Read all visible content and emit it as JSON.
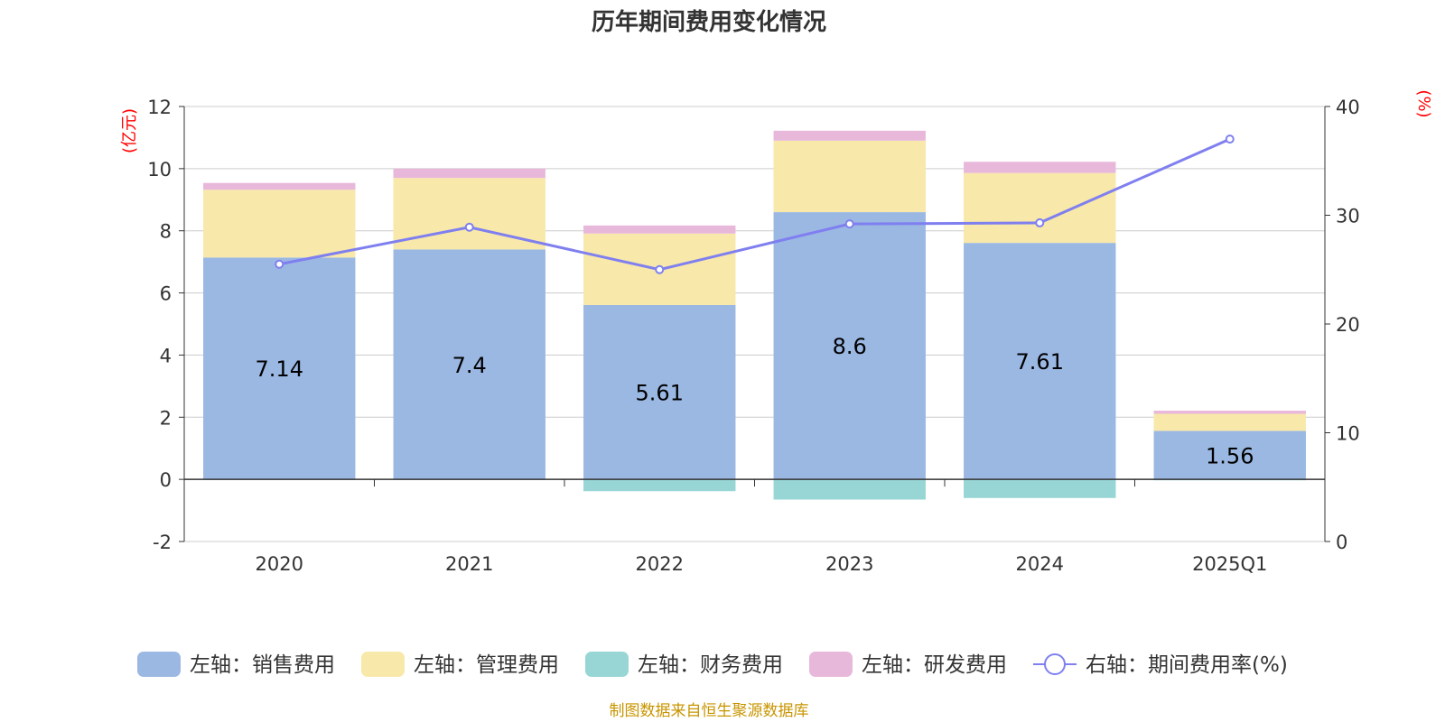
{
  "chart_data": {
    "type": "bar",
    "title": "历年期间费用变化情况",
    "categories": [
      "2020",
      "2021",
      "2022",
      "2023",
      "2024",
      "2025Q1"
    ],
    "left_axis": {
      "unit": "(亿元)",
      "ylim": [
        -2,
        12
      ],
      "ticks": [
        "12",
        "10",
        "8",
        "6",
        "4",
        "2",
        "0",
        "-2"
      ]
    },
    "right_axis": {
      "unit": "(%)",
      "ylim": [
        0,
        40
      ],
      "ticks": [
        "40",
        "30",
        "20",
        "10",
        "0"
      ]
    },
    "series": [
      {
        "name": "左轴：销售费用",
        "kind": "bar",
        "axis": "left",
        "color": "#9bb8e3",
        "values": [
          7.14,
          7.4,
          5.61,
          8.6,
          7.61,
          1.56
        ],
        "labels": [
          "7.14",
          "7.4",
          "5.61",
          "8.6",
          "7.61",
          "1.56"
        ]
      },
      {
        "name": "左轴：管理费用",
        "kind": "bar",
        "axis": "left",
        "color": "#f8e8a9",
        "values": [
          2.18,
          2.3,
          2.3,
          2.3,
          2.25,
          0.55
        ]
      },
      {
        "name": "左轴：财务费用",
        "kind": "bar",
        "axis": "left",
        "color": "#97d6d5",
        "values": [
          -0.02,
          -0.02,
          -0.38,
          -0.65,
          -0.6,
          -0.03
        ]
      },
      {
        "name": "左轴：研发费用",
        "kind": "bar",
        "axis": "left",
        "color": "#e8b8db",
        "values": [
          0.22,
          0.3,
          0.26,
          0.32,
          0.36,
          0.1
        ]
      },
      {
        "name": "右轴：期间费用率(%)",
        "kind": "line",
        "axis": "right",
        "color": "#7f7ff0",
        "values": [
          25.5,
          28.9,
          25.0,
          29.2,
          29.3,
          37.0
        ]
      }
    ],
    "grid": true,
    "legend_position": "bottom-center"
  },
  "source_note": "制图数据来自恒生聚源数据库"
}
